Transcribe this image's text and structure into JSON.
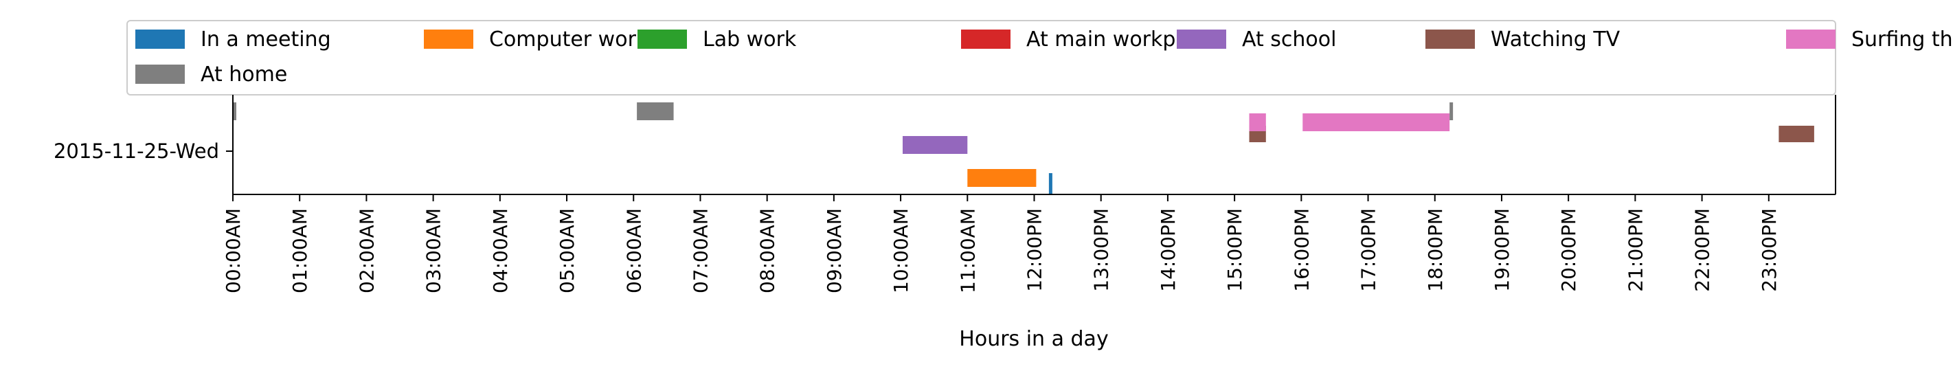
{
  "chart_data": {
    "type": "timeline",
    "xlabel": "Hours in a day",
    "ylabel": "",
    "xlim": [
      0,
      24
    ],
    "y_categories": [
      "2015-11-25-Wed"
    ],
    "tick_labels": [
      "00:00AM",
      "01:00AM",
      "02:00AM",
      "03:00AM",
      "04:00AM",
      "05:00AM",
      "06:00AM",
      "07:00AM",
      "08:00AM",
      "09:00AM",
      "10:00AM",
      "11:00AM",
      "12:00PM",
      "13:00PM",
      "14:00PM",
      "15:00PM",
      "16:00PM",
      "17:00PM",
      "18:00PM",
      "19:00PM",
      "20:00PM",
      "21:00PM",
      "22:00PM",
      "23:00PM"
    ],
    "legend_position": "top",
    "series": [
      {
        "name": "In a meeting",
        "color": "#1f77b4",
        "segments": [
          [
            12.22,
            12.27
          ]
        ]
      },
      {
        "name": "Computer work",
        "color": "#ff7f0e",
        "segments": [
          [
            11.0,
            12.03
          ]
        ]
      },
      {
        "name": "Lab work",
        "color": "#2ca02c",
        "segments": []
      },
      {
        "name": "At main workplace",
        "color": "#d62728",
        "segments": []
      },
      {
        "name": "At school",
        "color": "#9467bd",
        "segments": [
          [
            10.03,
            11.0
          ]
        ]
      },
      {
        "name": "Watching TV",
        "color": "#8c564b",
        "segments": [
          [
            15.22,
            15.47
          ],
          [
            23.15,
            23.68
          ]
        ]
      },
      {
        "name": "Surfing the internet",
        "color": "#e377c2",
        "segments": [
          [
            15.22,
            15.47
          ],
          [
            16.02,
            18.22
          ]
        ]
      },
      {
        "name": "At home",
        "color": "#7f7f7f",
        "segments": [
          [
            0.0,
            0.05
          ],
          [
            6.05,
            6.6
          ],
          [
            18.22,
            18.27
          ]
        ]
      }
    ]
  }
}
